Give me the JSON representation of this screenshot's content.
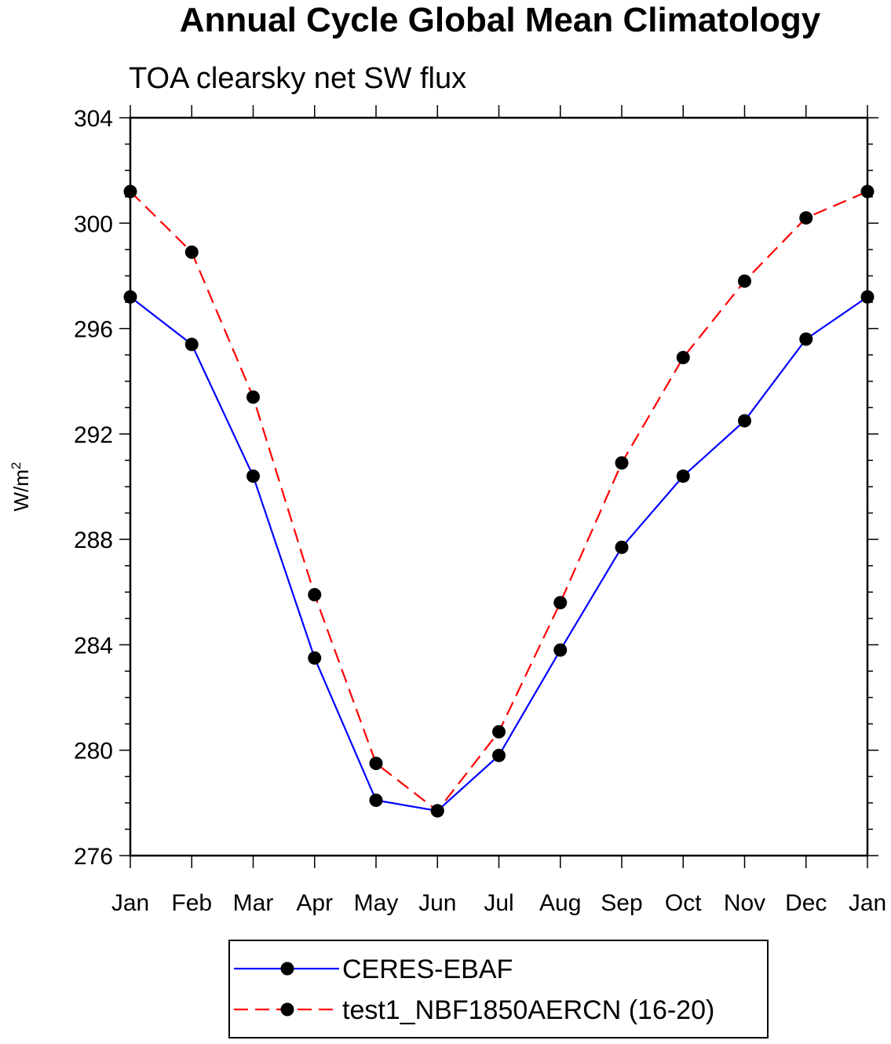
{
  "chart_data": {
    "type": "line",
    "title": "Annual Cycle Global Mean Climatology",
    "subtitle": "TOA clearsky net SW flux",
    "ylabel_base": "W/m",
    "ylabel_sup": "2",
    "xlabel": "",
    "categories": [
      "Jan",
      "Feb",
      "Mar",
      "Apr",
      "May",
      "Jun",
      "Jul",
      "Aug",
      "Sep",
      "Oct",
      "Nov",
      "Dec",
      "Jan"
    ],
    "ylim": [
      276,
      304
    ],
    "yticks": [
      276,
      280,
      284,
      288,
      292,
      296,
      300,
      304
    ],
    "series": [
      {
        "name": "CERES-EBAF",
        "color": "#0000ff",
        "dash": "solid",
        "values": [
          297.2,
          295.4,
          290.4,
          283.5,
          278.1,
          277.7,
          279.8,
          283.8,
          287.7,
          290.4,
          292.5,
          295.6,
          297.2
        ]
      },
      {
        "name": "test1_NBF1850AERCN (16-20)",
        "color": "#ff0000",
        "dash": "dashed",
        "values": [
          301.2,
          298.9,
          293.4,
          285.9,
          279.5,
          277.7,
          280.7,
          285.6,
          290.9,
          294.9,
          297.8,
          300.2,
          301.2
        ]
      }
    ],
    "legend": [
      "CERES-EBAF",
      "test1_NBF1850AERCN (16-20)"
    ]
  }
}
